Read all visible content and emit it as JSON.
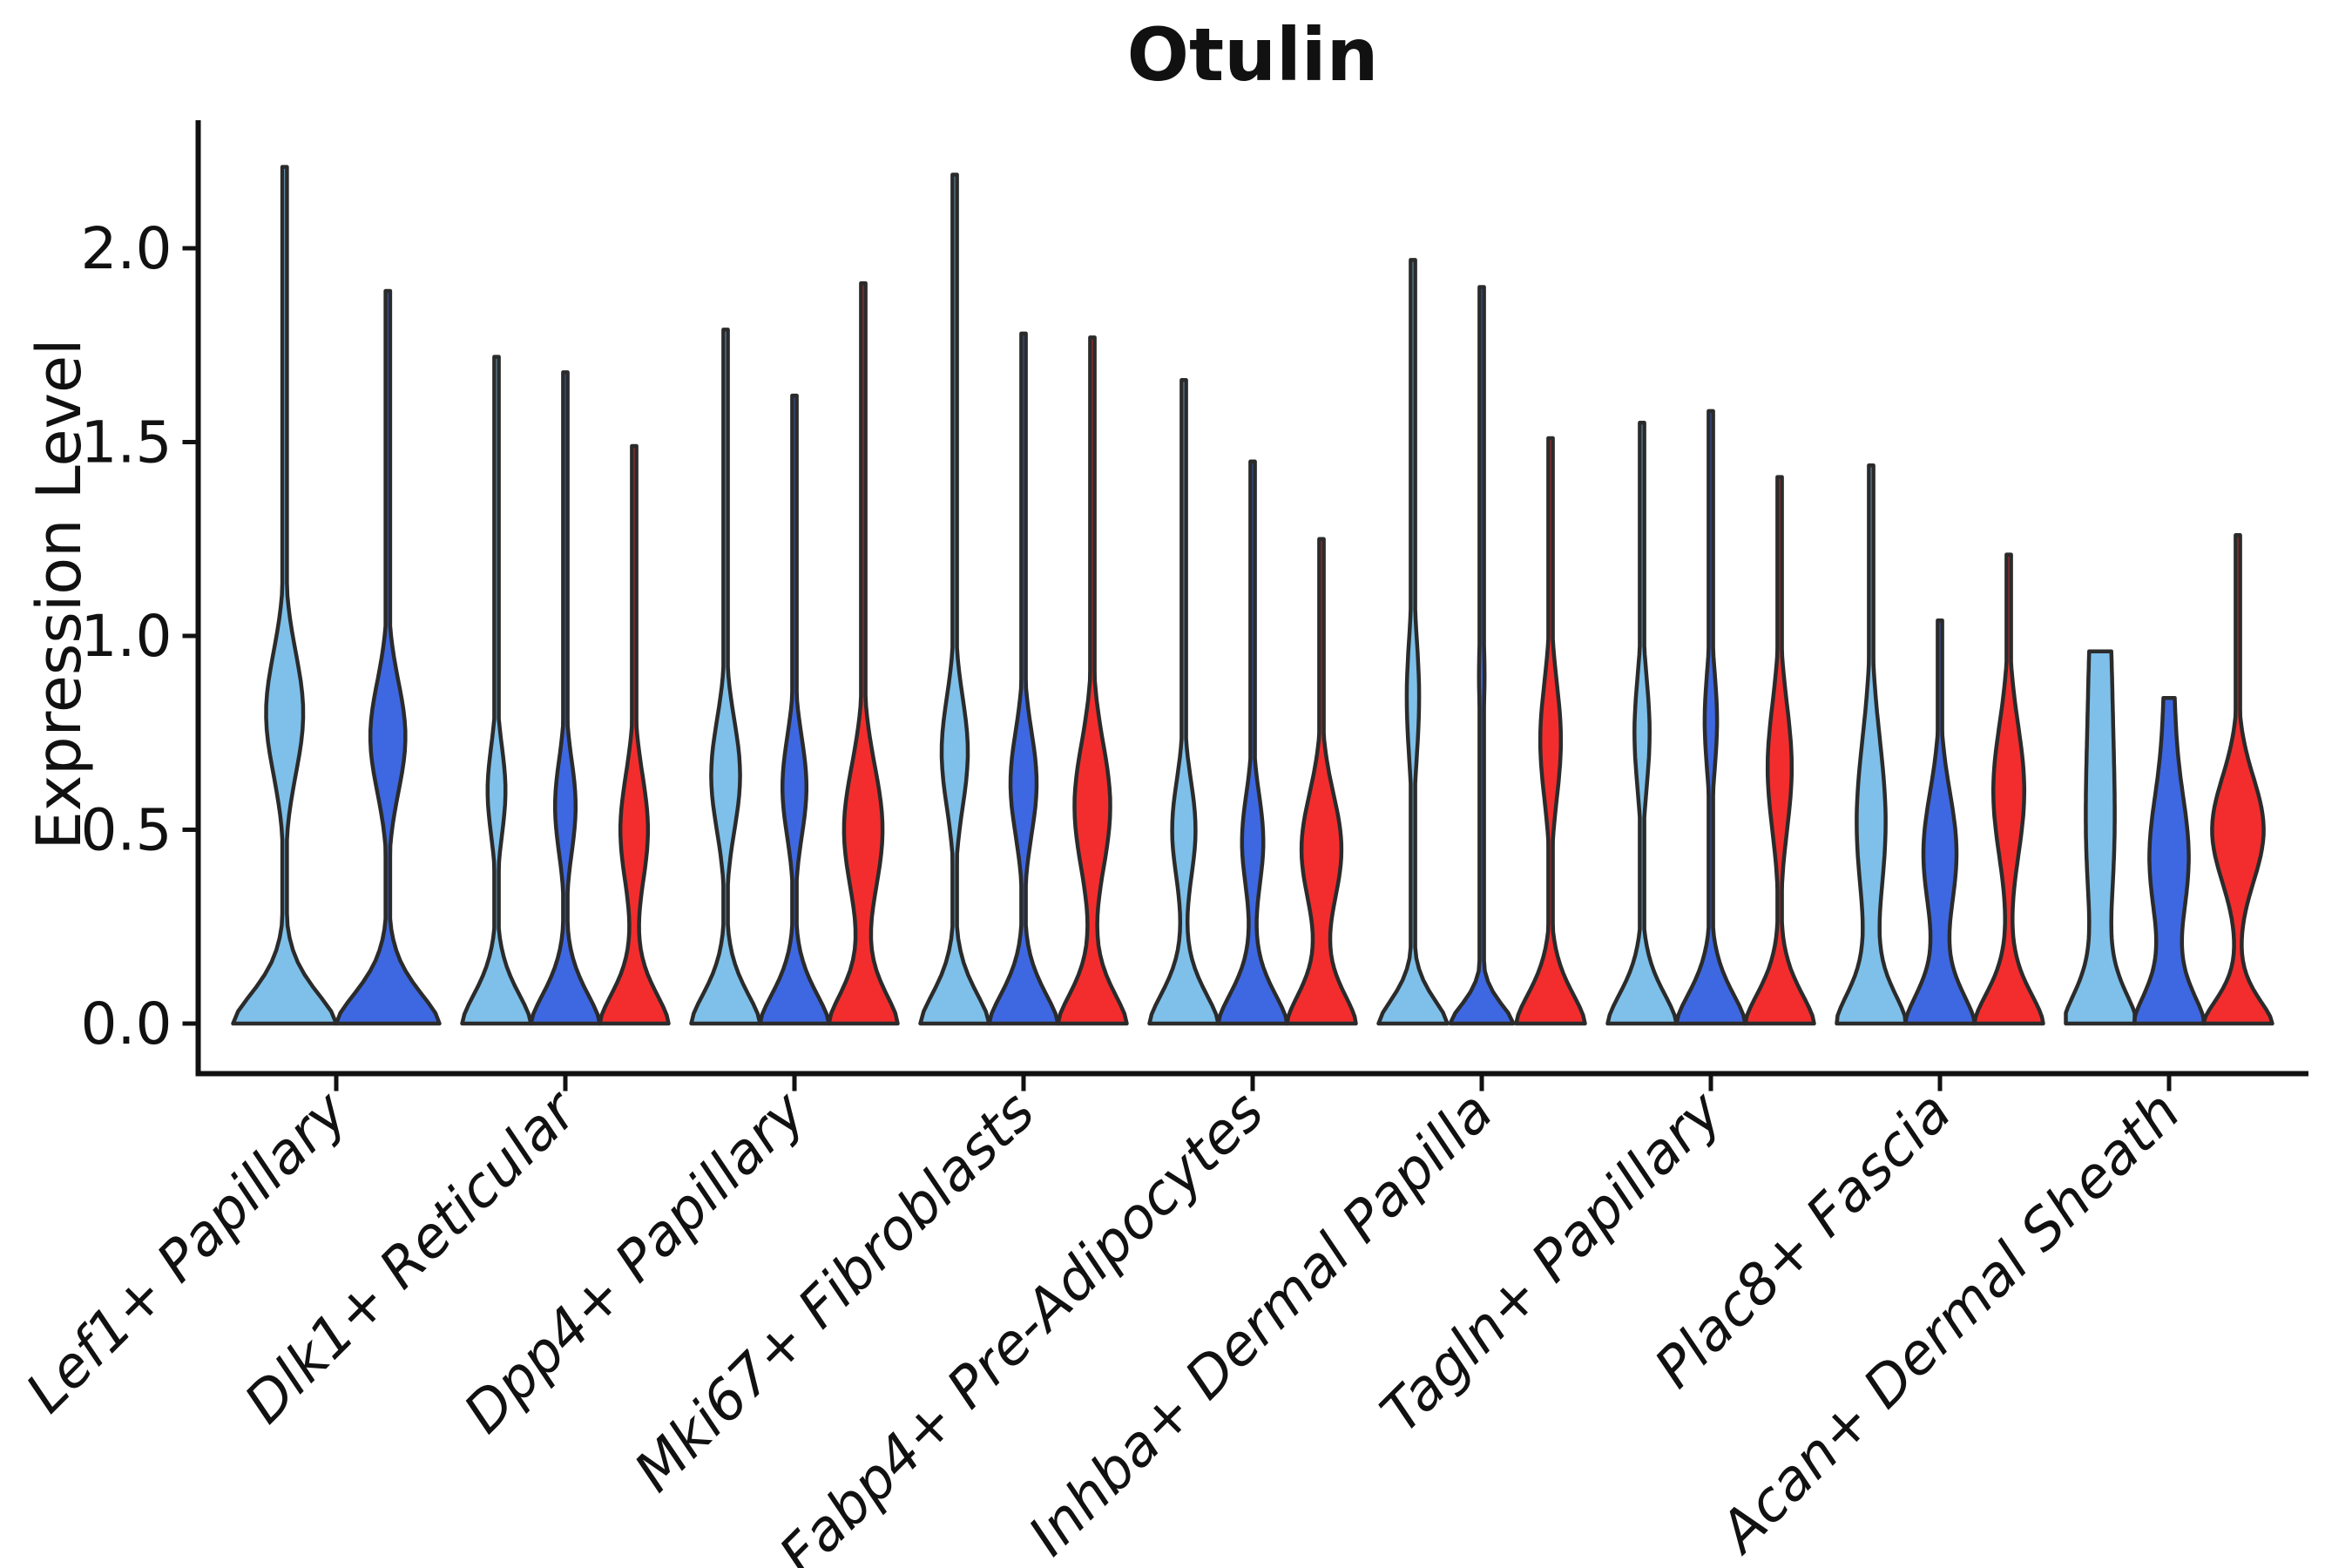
{
  "chart_data": {
    "type": "violin",
    "title": "Otulin",
    "ylabel": "Expression Level",
    "xlabel": "",
    "ylim": [
      -0.13,
      2.33
    ],
    "grid": false,
    "legend": "none",
    "yticks": [
      {
        "value": 0.0,
        "label": "0.0"
      },
      {
        "value": 0.5,
        "label": "0.5"
      },
      {
        "value": 1.0,
        "label": "1.0"
      },
      {
        "value": 1.5,
        "label": "1.5"
      },
      {
        "value": 2.0,
        "label": "2.0"
      }
    ],
    "colors": {
      "hue1": "#7EC0E9",
      "hue2": "#3E68E1",
      "hue3": "#F32D2D",
      "outline": "#2B2B2B",
      "axis": "#111111"
    },
    "categories": [
      "Lef1+ Papillary",
      "Dlk1+ Reticular",
      "Dpp4+ Papillary",
      "Mki67+ Fibroblasts",
      "Fabp4+ Pre-Adipocytes",
      "Inhba+ Dermal Papilla",
      "Tagln+ Papillary",
      "Plac8+ Fascia",
      "Acan+ Dermal Sheath"
    ],
    "groups": [
      {
        "category": "Lef1+ Papillary",
        "violins": [
          {
            "color": "hue1",
            "max": 2.21,
            "bulge": {
              "amp": 0.36,
              "center": 0.8,
              "sigma": 0.22
            }
          },
          {
            "color": "hue2",
            "max": 1.89,
            "bulge": {
              "amp": 0.34,
              "center": 0.74,
              "sigma": 0.2
            }
          }
        ]
      },
      {
        "category": "Dlk1+ Reticular",
        "violins": [
          {
            "color": "hue1",
            "max": 1.72,
            "bulge": {
              "amp": 0.26,
              "center": 0.6,
              "sigma": 0.16
            }
          },
          {
            "color": "hue2",
            "max": 1.68,
            "bulge": {
              "amp": 0.3,
              "center": 0.56,
              "sigma": 0.17
            }
          },
          {
            "color": "hue3",
            "max": 1.49,
            "bulge": {
              "amp": 0.4,
              "center": 0.5,
              "sigma": 0.2
            }
          }
        ]
      },
      {
        "category": "Dpp4+ Papillary",
        "violins": [
          {
            "color": "hue1",
            "max": 1.79,
            "bulge": {
              "amp": 0.42,
              "center": 0.64,
              "sigma": 0.2
            }
          },
          {
            "color": "hue2",
            "max": 1.62,
            "bulge": {
              "amp": 0.35,
              "center": 0.61,
              "sigma": 0.18
            }
          },
          {
            "color": "hue3",
            "max": 1.91,
            "bulge": {
              "amp": 0.56,
              "center": 0.5,
              "sigma": 0.23
            }
          }
        ]
      },
      {
        "category": "Mki67+ Fibroblasts",
        "violins": [
          {
            "color": "hue1",
            "max": 2.19,
            "bulge": {
              "amp": 0.38,
              "center": 0.7,
              "sigma": 0.2
            }
          },
          {
            "color": "hue2",
            "max": 1.78,
            "bulge": {
              "amp": 0.38,
              "center": 0.62,
              "sigma": 0.19
            }
          },
          {
            "color": "hue3",
            "max": 1.77,
            "bulge": {
              "amp": 0.52,
              "center": 0.56,
              "sigma": 0.23
            }
          }
        ]
      },
      {
        "category": "Fabp4+ Pre-Adipocytes",
        "violins": [
          {
            "color": "hue1",
            "max": 1.66,
            "bulge": {
              "amp": 0.34,
              "center": 0.5,
              "sigma": 0.18
            }
          },
          {
            "color": "hue2",
            "max": 1.45,
            "bulge": {
              "amp": 0.31,
              "center": 0.47,
              "sigma": 0.17
            }
          },
          {
            "color": "hue3",
            "max": 1.25,
            "bulge": {
              "amp": 0.58,
              "center": 0.45,
              "sigma": 0.2
            }
          }
        ]
      },
      {
        "category": "Inhba+ Dermal Papilla",
        "violins": [
          {
            "color": "hue1",
            "max": 1.97,
            "base": {
              "amp": 1.0,
              "sigma": 0.1
            },
            "bulge": {
              "amp": 0.18,
              "center": 0.84,
              "sigma": 0.22
            }
          },
          {
            "color": "hue2",
            "max": 1.9,
            "base": {
              "amp": 0.92,
              "sigma": 0.08
            },
            "bulge": {
              "amp": 0.08,
              "center": 0.9,
              "sigma": 0.18
            }
          },
          {
            "color": "hue3",
            "max": 1.51,
            "bulge": {
              "amp": 0.3,
              "center": 0.73,
              "sigma": 0.21
            }
          }
        ]
      },
      {
        "category": "Tagln+ Papillary",
        "violins": [
          {
            "color": "hue1",
            "max": 1.55,
            "bulge": {
              "amp": 0.22,
              "center": 0.75,
              "sigma": 0.2
            }
          },
          {
            "color": "hue2",
            "max": 1.58,
            "bulge": {
              "amp": 0.18,
              "center": 0.78,
              "sigma": 0.18
            }
          },
          {
            "color": "hue3",
            "max": 1.41,
            "bulge": {
              "amp": 0.35,
              "center": 0.66,
              "sigma": 0.23
            }
          }
        ]
      },
      {
        "category": "Plac8+ Fascia",
        "violins": [
          {
            "color": "hue1",
            "max": 1.44,
            "bulge": {
              "amp": 0.42,
              "center": 0.52,
              "sigma": 0.3
            }
          },
          {
            "color": "hue2",
            "max": 1.04,
            "bulge": {
              "amp": 0.48,
              "center": 0.44,
              "sigma": 0.22
            }
          },
          {
            "color": "hue3",
            "max": 1.21,
            "bulge": {
              "amp": 0.45,
              "center": 0.6,
              "sigma": 0.24
            }
          }
        ]
      },
      {
        "category": "Acan+ Dermal Sheath",
        "violins": [
          {
            "color": "hue1",
            "max": 0.96,
            "bulge": {
              "amp": 0.35,
              "center": 0.45,
              "sigma": 0.35
            },
            "top": {
              "amp": 0.28,
              "sigma": 0.4
            }
          },
          {
            "color": "hue2",
            "max": 0.84,
            "bulge": {
              "amp": 0.55,
              "center": 0.42,
              "sigma": 0.24
            },
            "top": {
              "amp": 0.14,
              "sigma": 0.3
            }
          },
          {
            "color": "hue3",
            "max": 1.26,
            "base": {
              "amp": 1.0,
              "sigma": 0.1
            },
            "bulge": {
              "amp": 0.75,
              "center": 0.5,
              "sigma": 0.19
            }
          }
        ]
      }
    ]
  }
}
